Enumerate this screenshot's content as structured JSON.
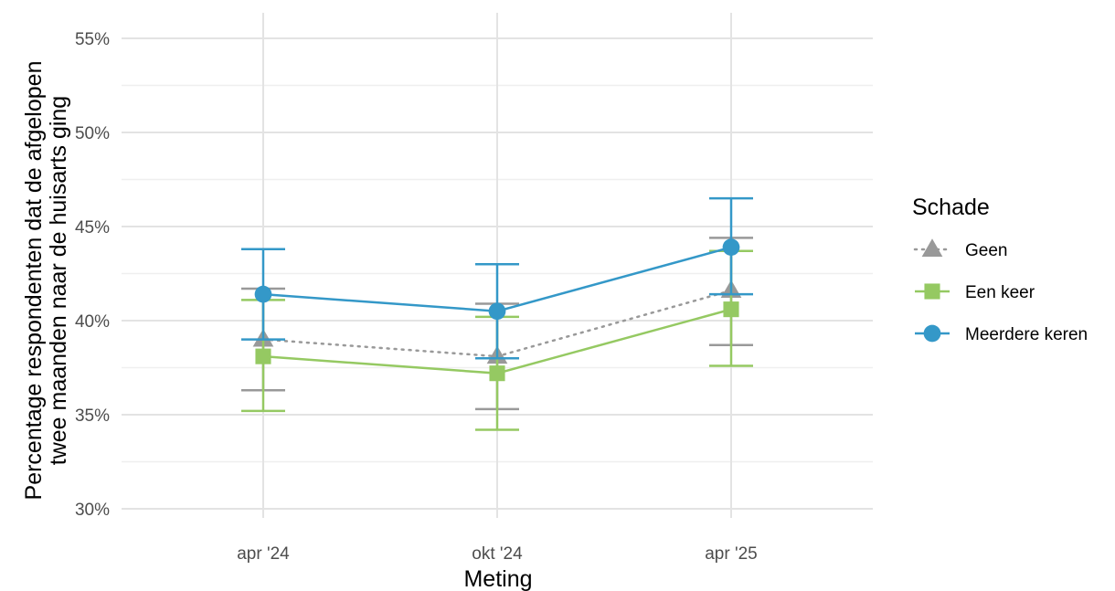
{
  "chart_data": {
    "type": "line",
    "categories": [
      "apr '24",
      "okt '24",
      "apr '25"
    ],
    "xlabel": "Meting",
    "ylabel_lines": [
      "Percentage respondenten dat de afgelopen",
      "twee maanden naar de huisarts ging"
    ],
    "ylim": [
      29.5,
      56
    ],
    "yticks": [
      30,
      35,
      40,
      45,
      50,
      55
    ],
    "ytick_labels": [
      "30%",
      "35%",
      "40%",
      "45%",
      "50%",
      "55%"
    ],
    "grid": true,
    "legend": {
      "title": "Schade",
      "position": "right"
    },
    "series": [
      {
        "name": "Geen",
        "color": "#999999",
        "marker": "triangle",
        "line": "dotted",
        "values": [
          39.0,
          38.1,
          41.6
        ],
        "lower": [
          36.3,
          35.3,
          38.7
        ],
        "upper": [
          41.7,
          40.9,
          44.4
        ]
      },
      {
        "name": "Een keer",
        "color": "#95c962",
        "marker": "square",
        "line": "solid",
        "values": [
          38.1,
          37.2,
          40.6
        ],
        "lower": [
          35.2,
          34.2,
          37.6
        ],
        "upper": [
          41.1,
          40.2,
          43.7
        ]
      },
      {
        "name": "Meerdere keren",
        "color": "#3498c8",
        "marker": "circle",
        "line": "solid",
        "values": [
          41.4,
          40.5,
          43.9
        ],
        "lower": [
          39.0,
          38.0,
          41.4
        ],
        "upper": [
          43.8,
          43.0,
          46.5
        ]
      }
    ]
  }
}
